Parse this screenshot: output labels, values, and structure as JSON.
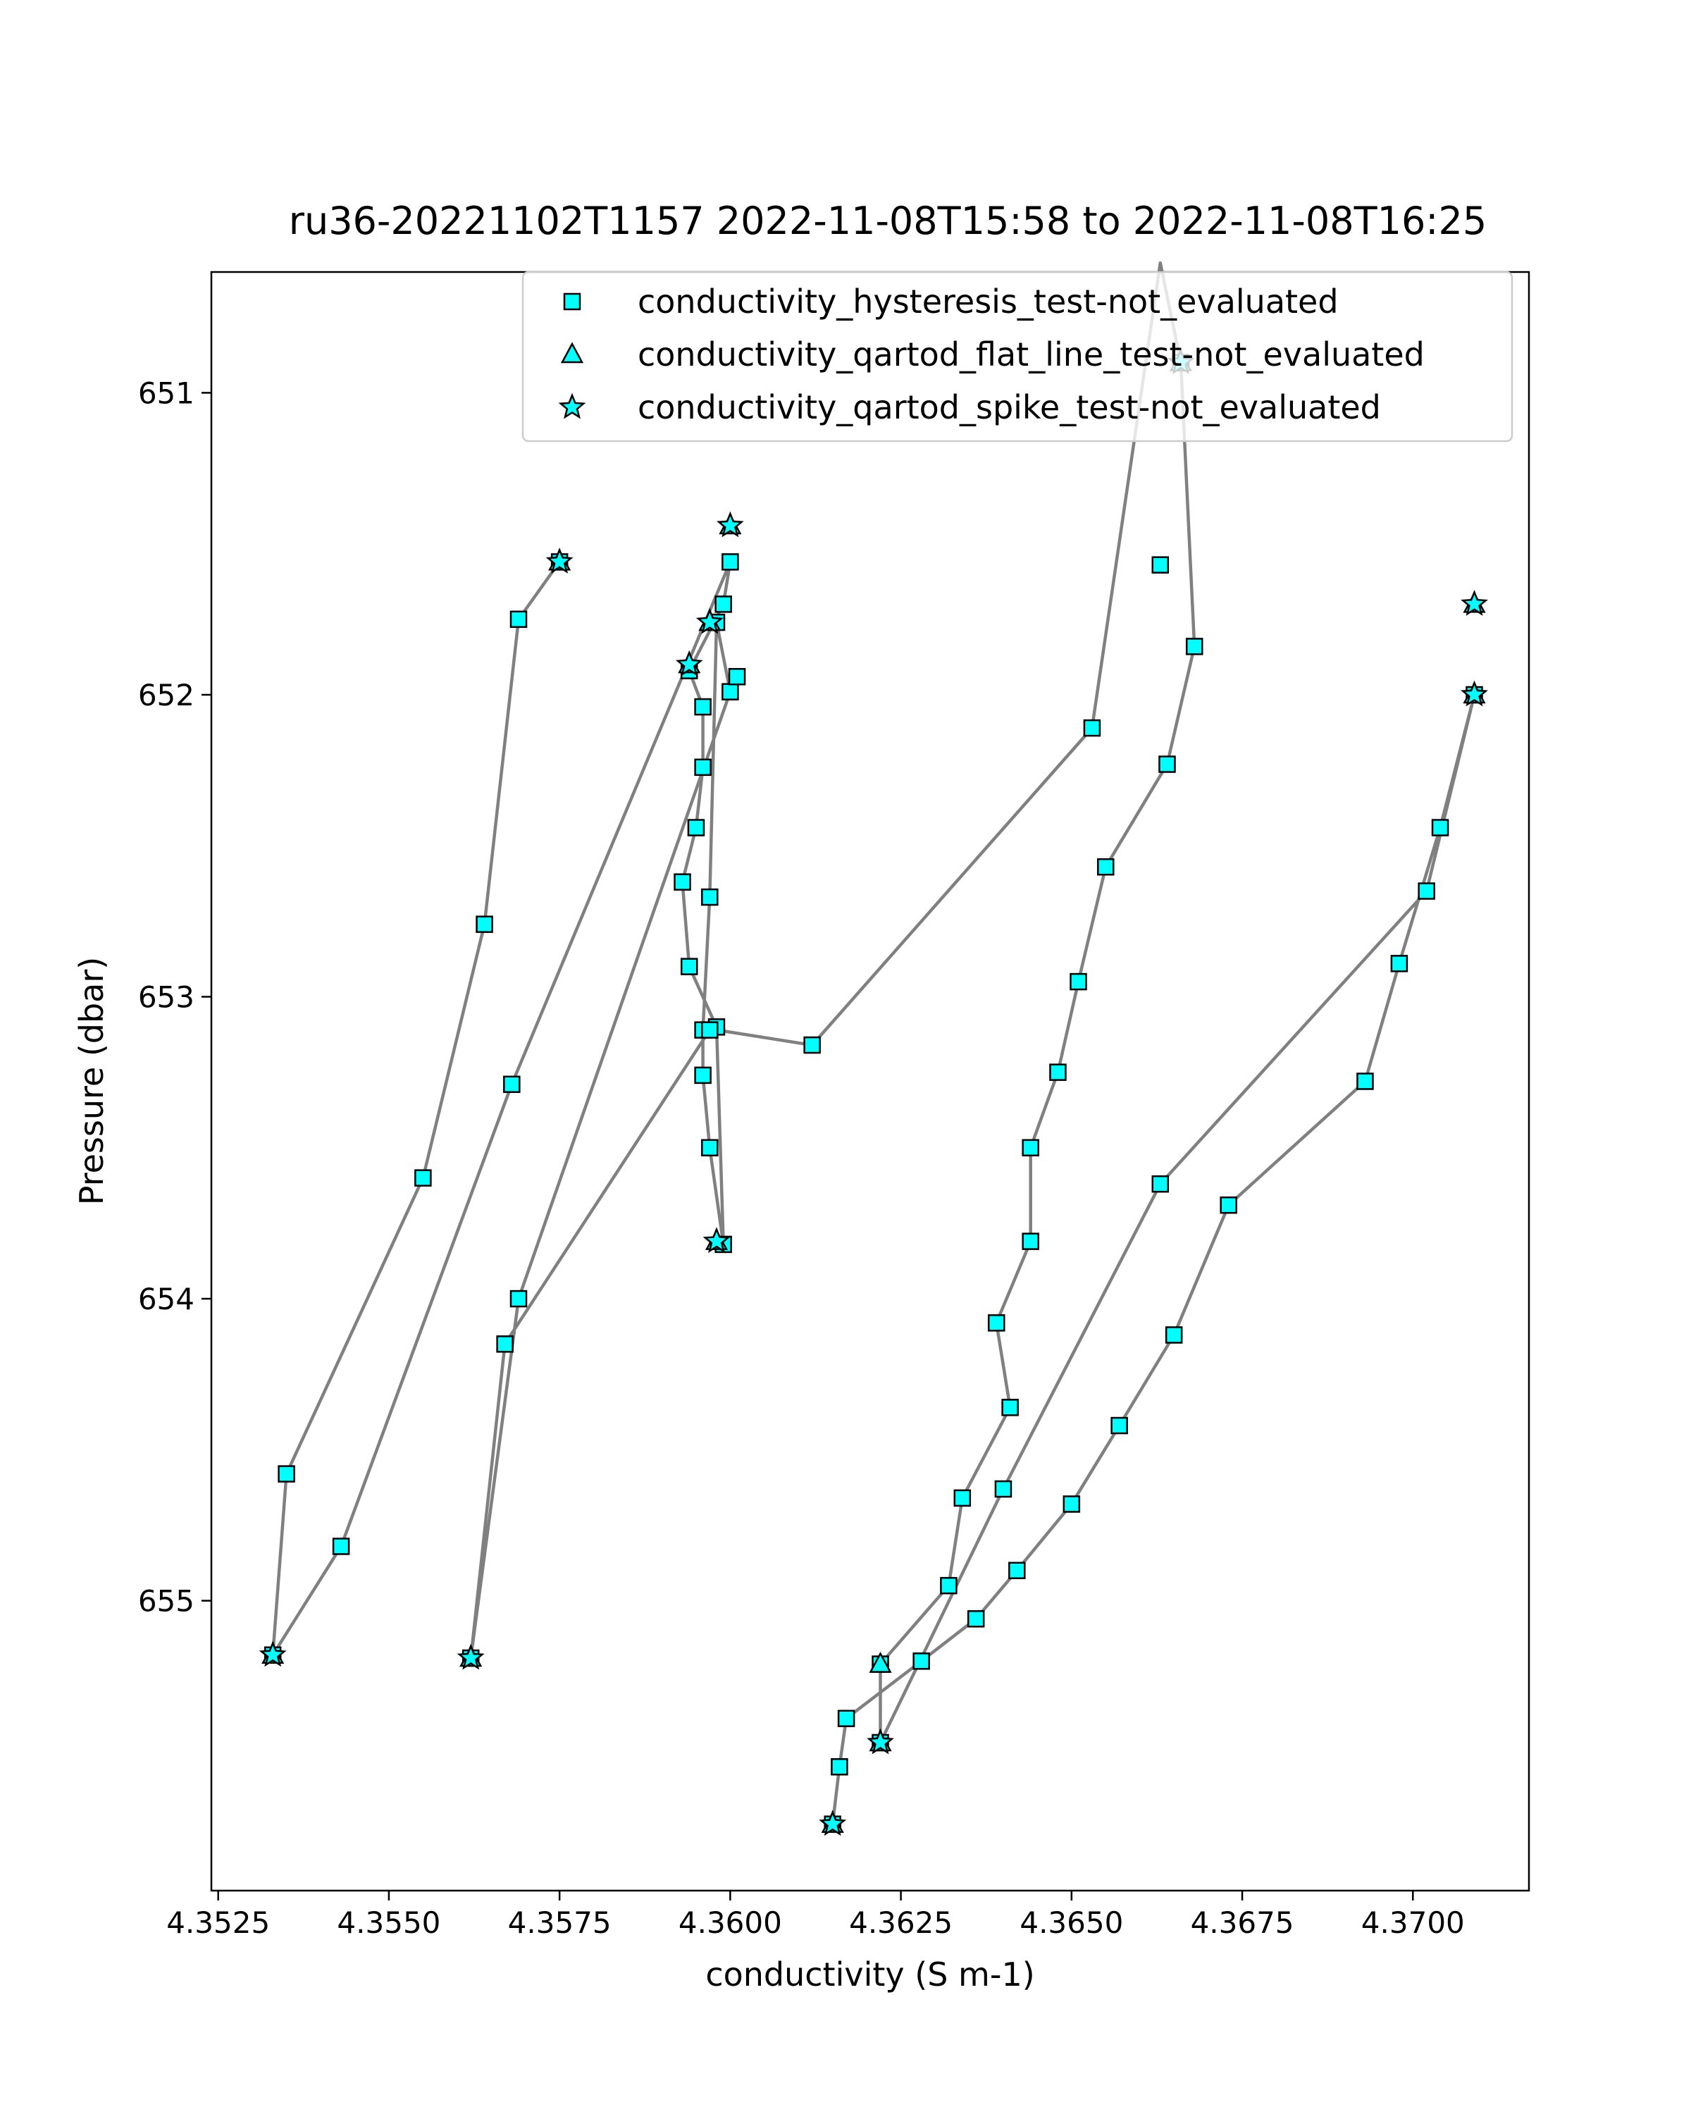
{
  "chart_data": {
    "type": "scatter",
    "title": "ru36-20221102T1157 2022-11-08T15:58 to 2022-11-08T16:25",
    "xlabel": "conductivity (S m-1)",
    "ylabel": "Pressure (dbar)",
    "xlim": [
      4.3524,
      4.3717
    ],
    "ylim": [
      655.96,
      650.6
    ],
    "y_inverted": true,
    "grid": false,
    "legend_position": "top-right",
    "x_ticks": [
      4.3525,
      4.355,
      4.3575,
      4.36,
      4.3625,
      4.365,
      4.3675,
      4.37
    ],
    "x_tick_labels": [
      "4.3525",
      "4.3550",
      "4.3575",
      "4.3600",
      "4.3625",
      "4.3650",
      "4.3675",
      "4.3700"
    ],
    "y_ticks": [
      651,
      652,
      653,
      654,
      655
    ],
    "y_tick_labels": [
      "651",
      "652",
      "653",
      "654",
      "655"
    ],
    "colors": {
      "marker_fill": "#00ffff",
      "marker_edge": "#000000",
      "line": "#808080"
    },
    "line": {
      "x": [
        4.3575,
        4.3569,
        4.3564,
        4.3555,
        4.3535,
        4.3533,
        4.3543,
        4.3568,
        4.36,
        4.3599,
        4.3594,
        4.3596,
        4.3596,
        4.3595,
        4.3593,
        4.3594,
        4.3598,
        4.3599,
        4.3597,
        4.3596,
        4.3596,
        4.3597,
        4.3598,
        4.36,
        4.3569,
        4.3562,
        4.3567,
        4.3597,
        4.3598,
        4.3612,
        4.3653,
        4.3663,
        4.3666,
        4.3668,
        4.3664,
        4.3655,
        4.3651,
        4.3648,
        4.3644,
        4.3644,
        4.3639,
        4.3641,
        4.3634,
        4.3632,
        4.3622,
        4.3622,
        4.364,
        4.3663,
        4.3702,
        4.3709,
        4.3704,
        4.3698,
        4.3693,
        4.3673,
        4.3665,
        4.3657,
        4.365,
        4.3642,
        4.3636,
        4.3628,
        4.3617,
        4.3616,
        4.3615
      ],
      "y": [
        651.56,
        651.75,
        652.76,
        653.6,
        654.58,
        655.18,
        654.82,
        653.29,
        651.56,
        651.7,
        651.92,
        652.04,
        652.24,
        652.44,
        652.62,
        652.9,
        653.1,
        653.82,
        653.5,
        653.26,
        653.11,
        652.67,
        651.76,
        651.99,
        654.0,
        655.19,
        654.15,
        653.11,
        653.11,
        653.16,
        652.11,
        650.57,
        650.9,
        651.84,
        652.23,
        652.57,
        652.95,
        653.25,
        653.5,
        653.81,
        654.08,
        654.36,
        654.66,
        654.95,
        655.21,
        655.47,
        654.63,
        653.62,
        652.65,
        652.0,
        652.44,
        652.89,
        653.28,
        653.69,
        654.12,
        654.42,
        654.68,
        654.9,
        655.06,
        655.2,
        655.39,
        655.55,
        655.74
      ]
    },
    "series": [
      {
        "name": "conductivity_hysteresis_test-not_evaluated",
        "marker": "square",
        "x": [
          4.3575,
          4.3569,
          4.3564,
          4.3555,
          4.3535,
          4.3533,
          4.3543,
          4.3568,
          4.36,
          4.3599,
          4.3594,
          4.3596,
          4.3596,
          4.3595,
          4.3593,
          4.3594,
          4.3598,
          4.3599,
          4.3597,
          4.3596,
          4.3596,
          4.3597,
          4.3598,
          4.36,
          4.3601,
          4.3569,
          4.3562,
          4.3567,
          4.3597,
          4.3612,
          4.3653,
          4.3663,
          4.3666,
          4.3668,
          4.3664,
          4.3655,
          4.3651,
          4.3648,
          4.3644,
          4.3644,
          4.3639,
          4.3641,
          4.3634,
          4.3632,
          4.3622,
          4.3622,
          4.364,
          4.3663,
          4.3702,
          4.3709,
          4.3704,
          4.3698,
          4.3693,
          4.3673,
          4.3665,
          4.3657,
          4.365,
          4.3642,
          4.3636,
          4.3628,
          4.3617,
          4.3616,
          4.3615
        ],
        "y": [
          651.56,
          651.75,
          652.76,
          653.6,
          654.58,
          655.18,
          654.82,
          653.29,
          651.56,
          651.7,
          651.92,
          652.04,
          652.24,
          652.44,
          652.62,
          652.9,
          653.1,
          653.82,
          653.5,
          653.26,
          653.11,
          652.67,
          651.76,
          651.99,
          651.94,
          654.0,
          655.19,
          654.15,
          653.11,
          653.16,
          652.11,
          651.57,
          650.9,
          651.84,
          652.23,
          652.57,
          652.95,
          653.25,
          653.5,
          653.81,
          654.08,
          654.36,
          654.66,
          654.95,
          655.21,
          655.47,
          654.63,
          653.62,
          652.65,
          652.0,
          652.44,
          652.89,
          653.28,
          653.69,
          654.12,
          654.42,
          654.68,
          654.9,
          655.06,
          655.2,
          655.39,
          655.55,
          655.74
        ]
      },
      {
        "name": "conductivity_qartod_flat_line_test-not_evaluated",
        "marker": "triangle",
        "x": [
          4.3575,
          4.3533,
          4.3562,
          4.36,
          4.3597,
          4.3594,
          4.3598,
          4.3666,
          4.3709,
          4.3709,
          4.3622,
          4.3622,
          4.3615
        ],
        "y": [
          651.56,
          655.18,
          655.19,
          651.44,
          651.76,
          651.9,
          653.81,
          650.9,
          651.7,
          652.0,
          655.21,
          655.47,
          655.74
        ]
      },
      {
        "name": "conductivity_qartod_spike_test-not_evaluated",
        "marker": "star",
        "x": [
          4.3575,
          4.3533,
          4.3562,
          4.36,
          4.3597,
          4.3594,
          4.3598,
          4.3666,
          4.3709,
          4.3709,
          4.3622,
          4.3615
        ],
        "y": [
          651.56,
          655.18,
          655.19,
          651.44,
          651.76,
          651.9,
          653.81,
          650.9,
          651.7,
          652.0,
          655.47,
          655.74
        ]
      }
    ]
  }
}
